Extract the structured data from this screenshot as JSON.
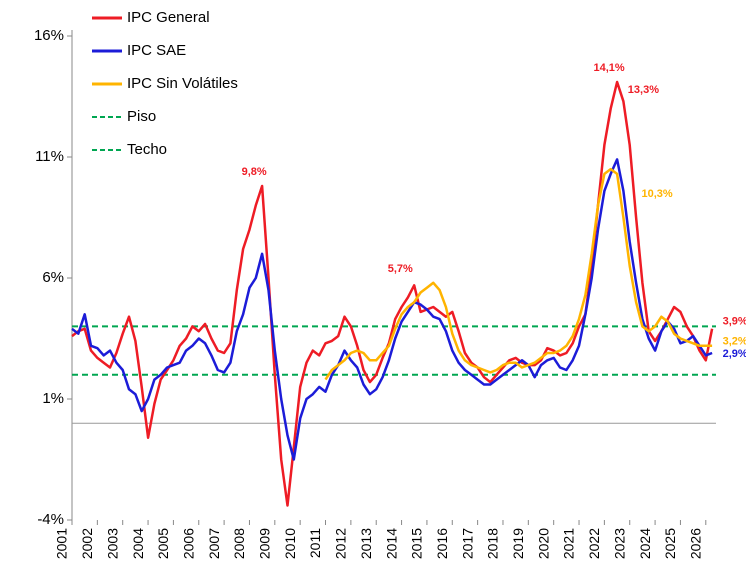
{
  "chart_data": {
    "type": "line",
    "x": [
      2001,
      2001.25,
      2001.5,
      2001.75,
      2002,
      2002.25,
      2002.5,
      2002.75,
      2003,
      2003.25,
      2003.5,
      2003.75,
      2004,
      2004.25,
      2004.5,
      2004.75,
      2005,
      2005.25,
      2005.5,
      2005.75,
      2006,
      2006.25,
      2006.5,
      2006.75,
      2007,
      2007.25,
      2007.5,
      2007.75,
      2008,
      2008.25,
      2008.5,
      2008.75,
      2009,
      2009.25,
      2009.5,
      2009.75,
      2010,
      2010.25,
      2010.5,
      2010.75,
      2011,
      2011.25,
      2011.5,
      2011.75,
      2012,
      2012.25,
      2012.5,
      2012.75,
      2013,
      2013.25,
      2013.5,
      2013.75,
      2014,
      2014.25,
      2014.5,
      2014.75,
      2015,
      2015.25,
      2015.5,
      2015.75,
      2016,
      2016.25,
      2016.5,
      2016.75,
      2017,
      2017.25,
      2017.5,
      2017.75,
      2018,
      2018.25,
      2018.5,
      2018.75,
      2019,
      2019.25,
      2019.5,
      2019.75,
      2020,
      2020.25,
      2020.5,
      2020.75,
      2021,
      2021.25,
      2021.5,
      2021.75,
      2022,
      2022.25,
      2022.5,
      2022.75,
      2023,
      2023.25,
      2023.5,
      2023.75,
      2024,
      2024.25,
      2024.5,
      2024.75,
      2025,
      2025.25,
      2025.5,
      2025.75,
      2026,
      2026.25
    ],
    "series": [
      {
        "name": "IPC General",
        "color": "#ee1c25",
        "values": [
          3.6,
          3.8,
          3.9,
          3.0,
          2.7,
          2.5,
          2.3,
          2.9,
          3.7,
          4.4,
          3.4,
          1.5,
          -0.6,
          0.8,
          1.8,
          2.2,
          2.6,
          3.2,
          3.5,
          4.0,
          3.8,
          4.1,
          3.5,
          3.0,
          2.9,
          3.3,
          5.5,
          7.2,
          8.0,
          9.0,
          9.8,
          6.0,
          2.0,
          -1.5,
          -3.4,
          -1.0,
          1.5,
          2.5,
          3.0,
          2.8,
          3.3,
          3.4,
          3.6,
          4.4,
          4.0,
          3.2,
          2.2,
          1.7,
          2.0,
          2.7,
          3.3,
          4.3,
          4.8,
          5.2,
          5.7,
          4.6,
          4.7,
          4.8,
          4.6,
          4.4,
          4.6,
          3.8,
          2.9,
          2.5,
          2.3,
          1.9,
          1.7,
          2.0,
          2.3,
          2.6,
          2.7,
          2.5,
          2.4,
          2.4,
          2.6,
          3.1,
          3.0,
          2.8,
          2.9,
          3.3,
          4.0,
          4.5,
          6.5,
          9.0,
          11.5,
          13.0,
          14.1,
          13.3,
          11.5,
          8.5,
          5.8,
          3.8,
          3.4,
          3.8,
          4.3,
          4.8,
          4.6,
          4.0,
          3.6,
          3.0,
          2.6,
          3.9
        ],
        "value_labels": [
          null,
          null,
          null,
          null,
          null,
          null,
          null,
          null,
          null,
          null,
          null,
          null,
          null,
          null,
          null,
          null,
          null,
          null,
          null,
          null,
          null,
          null,
          null,
          null,
          null,
          null,
          null,
          null,
          null,
          null,
          "9,8%",
          null,
          null,
          null,
          null,
          null,
          null,
          null,
          null,
          null,
          null,
          null,
          null,
          null,
          null,
          null,
          null,
          null,
          null,
          null,
          null,
          null,
          null,
          null,
          "5,7%",
          null,
          null,
          null,
          null,
          null,
          null,
          null,
          null,
          null,
          null,
          null,
          null,
          null,
          null,
          null,
          null,
          null,
          null,
          null,
          null,
          null,
          null,
          null,
          null,
          null,
          null,
          null,
          null,
          null,
          null,
          null,
          "14,1%",
          "13,3%",
          null,
          null,
          null,
          null,
          null,
          null,
          null,
          null,
          null,
          null,
          null,
          null,
          null,
          "3,9%"
        ]
      },
      {
        "name": "IPC SAE",
        "color": "#1c1cd8",
        "values": [
          3.9,
          3.7,
          4.5,
          3.2,
          3.1,
          2.8,
          3.0,
          2.5,
          2.2,
          1.4,
          1.2,
          0.5,
          1.0,
          1.8,
          2.0,
          2.3,
          2.4,
          2.5,
          3.0,
          3.2,
          3.5,
          3.3,
          2.8,
          2.2,
          2.1,
          2.5,
          3.8,
          4.5,
          5.6,
          6.0,
          7.0,
          5.5,
          3.0,
          1.0,
          -0.5,
          -1.5,
          0.2,
          1.0,
          1.2,
          1.5,
          1.3,
          2.0,
          2.4,
          3.0,
          2.6,
          2.3,
          1.6,
          1.2,
          1.4,
          1.9,
          2.6,
          3.5,
          4.2,
          4.6,
          5.0,
          4.9,
          4.7,
          4.4,
          4.3,
          3.8,
          3.0,
          2.5,
          2.2,
          2.0,
          1.8,
          1.6,
          1.6,
          1.8,
          2.0,
          2.2,
          2.4,
          2.6,
          2.4,
          1.9,
          2.4,
          2.6,
          2.7,
          2.3,
          2.2,
          2.6,
          3.2,
          4.5,
          6.0,
          8.0,
          9.6,
          10.3,
          10.9,
          9.6,
          7.5,
          5.8,
          4.3,
          3.5,
          3.0,
          3.8,
          4.2,
          3.9,
          3.3,
          3.4,
          3.6,
          3.2,
          2.8,
          2.9
        ],
        "value_labels": [
          null,
          null,
          null,
          null,
          null,
          null,
          null,
          null,
          null,
          null,
          null,
          null,
          null,
          null,
          null,
          null,
          null,
          null,
          null,
          null,
          null,
          null,
          null,
          null,
          null,
          null,
          null,
          null,
          null,
          null,
          null,
          null,
          null,
          null,
          null,
          null,
          null,
          null,
          null,
          null,
          null,
          null,
          null,
          null,
          null,
          null,
          null,
          null,
          null,
          null,
          null,
          null,
          null,
          null,
          null,
          null,
          null,
          null,
          null,
          null,
          null,
          null,
          null,
          null,
          null,
          null,
          null,
          null,
          null,
          null,
          null,
          null,
          null,
          null,
          null,
          null,
          null,
          null,
          null,
          null,
          null,
          null,
          null,
          null,
          null,
          null,
          null,
          null,
          null,
          null,
          null,
          null,
          null,
          null,
          null,
          null,
          null,
          null,
          null,
          null,
          null,
          "2,9%"
        ]
      },
      {
        "name": "IPC Sin Volátiles",
        "color": "#ffb400",
        "values": [
          null,
          null,
          null,
          null,
          null,
          null,
          null,
          null,
          null,
          null,
          null,
          null,
          null,
          null,
          null,
          null,
          null,
          null,
          null,
          null,
          null,
          null,
          null,
          null,
          null,
          null,
          null,
          null,
          null,
          null,
          null,
          null,
          null,
          null,
          null,
          null,
          null,
          null,
          null,
          null,
          1.8,
          2.2,
          2.4,
          2.6,
          2.9,
          3.0,
          2.9,
          2.6,
          2.6,
          2.9,
          3.2,
          3.9,
          4.5,
          4.8,
          5.0,
          5.4,
          5.6,
          5.8,
          5.5,
          4.8,
          3.7,
          3.0,
          2.6,
          2.4,
          2.3,
          2.2,
          2.1,
          2.2,
          2.4,
          2.5,
          2.5,
          2.3,
          2.4,
          2.5,
          2.7,
          2.9,
          2.9,
          3.0,
          3.2,
          3.6,
          4.3,
          5.3,
          7.0,
          9.0,
          10.3,
          10.5,
          10.3,
          8.5,
          6.5,
          5.0,
          4.0,
          3.8,
          4.0,
          4.4,
          4.2,
          3.7,
          3.5,
          3.4,
          3.3,
          3.2,
          3.2,
          3.2
        ],
        "value_labels": [
          null,
          null,
          null,
          null,
          null,
          null,
          null,
          null,
          null,
          null,
          null,
          null,
          null,
          null,
          null,
          null,
          null,
          null,
          null,
          null,
          null,
          null,
          null,
          null,
          null,
          null,
          null,
          null,
          null,
          null,
          null,
          null,
          null,
          null,
          null,
          null,
          null,
          null,
          null,
          null,
          null,
          null,
          null,
          null,
          null,
          null,
          null,
          null,
          null,
          null,
          null,
          null,
          null,
          null,
          null,
          null,
          null,
          null,
          null,
          null,
          null,
          null,
          null,
          null,
          null,
          null,
          null,
          null,
          null,
          null,
          null,
          null,
          null,
          null,
          null,
          null,
          null,
          null,
          null,
          null,
          null,
          null,
          null,
          null,
          null,
          null,
          "10,3%",
          null,
          null,
          null,
          null,
          null,
          null,
          null,
          null,
          null,
          null,
          null,
          null,
          null,
          null,
          "3,2%"
        ]
      }
    ],
    "reference_lines": [
      {
        "name": "Piso",
        "value": 2,
        "color": "#00a651"
      },
      {
        "name": "Techo",
        "value": 4,
        "color": "#00a651"
      }
    ],
    "xlim": [
      2001,
      2026.6
    ],
    "xticks": [
      2001,
      2002,
      2003,
      2004,
      2005,
      2006,
      2007,
      2008,
      2009,
      2010,
      2011,
      2012,
      2013,
      2014,
      2015,
      2016,
      2017,
      2018,
      2019,
      2020,
      2021,
      2022,
      2023,
      2024,
      2025,
      2026
    ],
    "ylim": [
      -4,
      16
    ],
    "yticks": [
      {
        "value": -4,
        "label": "-4%"
      },
      {
        "value": 1,
        "label": "1%"
      },
      {
        "value": 6,
        "label": "6%"
      },
      {
        "value": 11,
        "label": "11%"
      },
      {
        "value": 16,
        "label": "16%"
      }
    ],
    "grid": false,
    "legend": "upper left"
  }
}
